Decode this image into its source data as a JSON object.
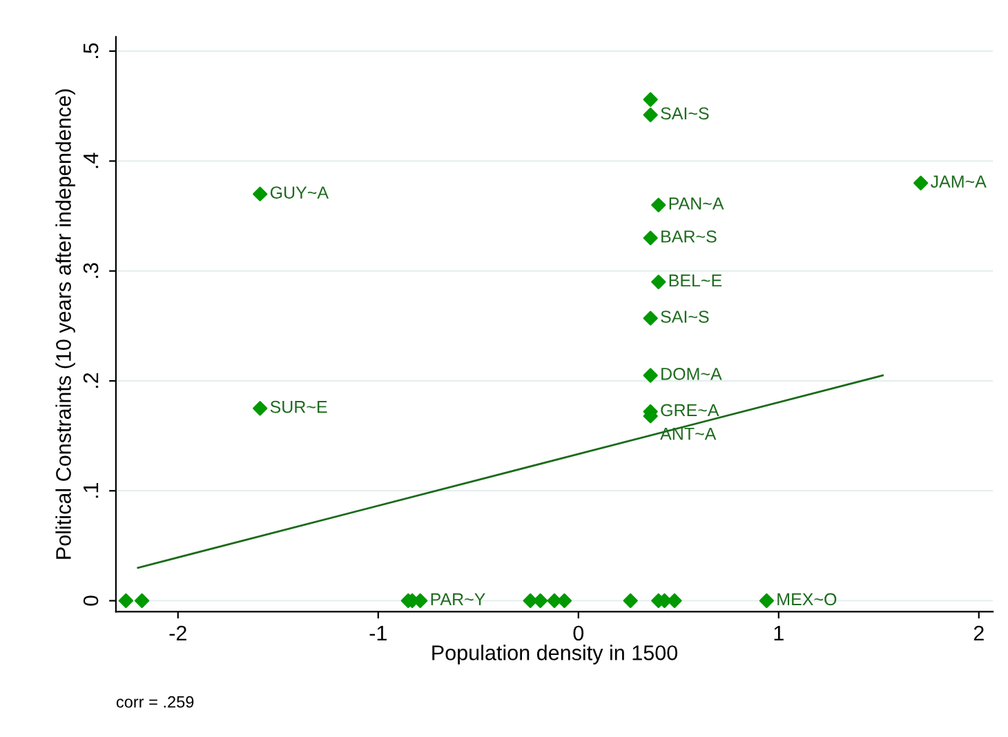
{
  "chart_data": {
    "type": "scatter",
    "xlabel": "Population density in 1500",
    "ylabel": "Political Constraints (10 years after independence)",
    "xlim": [
      -2.31,
      2.07
    ],
    "ylim": [
      -0.01,
      0.513
    ],
    "xticks": [
      -2,
      -1,
      0,
      1,
      2
    ],
    "yticks": [
      0,
      {
        "value": 0.1,
        "label": ".1"
      },
      {
        "value": 0.2,
        "label": ".2"
      },
      {
        "value": 0.3,
        "label": ".3"
      },
      {
        "value": 0.4,
        "label": ".4"
      },
      {
        "value": 0.5,
        "label": ".5"
      }
    ],
    "grid": "y",
    "legend": false,
    "series": [
      {
        "marker": "diamond",
        "color": "#009900",
        "x": [
          0.36,
          0.36,
          -1.59,
          1.71,
          0.4,
          0.36,
          0.4,
          0.36,
          0.36,
          0.36,
          0.36,
          -1.59,
          -2.26,
          -2.18,
          -0.85,
          -0.83,
          -0.79,
          -0.24,
          -0.19,
          -0.12,
          -0.07,
          0.26,
          0.4,
          0.43,
          0.48,
          0.94
        ],
        "values": [
          0.456,
          0.442,
          0.37,
          0.38,
          0.36,
          0.33,
          0.29,
          0.257,
          0.205,
          0.172,
          0.168,
          0.175,
          0,
          0,
          0,
          0,
          0,
          0,
          0,
          0,
          0,
          0,
          0,
          0,
          0,
          0
        ]
      },
      {
        "type": "line",
        "color": "#1a6b1a",
        "x": [
          -2.2,
          1.52
        ],
        "values": [
          0.03,
          0.205
        ]
      }
    ],
    "annotations": [
      {
        "text": "SAI~S",
        "x": 0.36,
        "y": 0.442
      },
      {
        "text": "GUY~A",
        "x": -1.59,
        "y": 0.37
      },
      {
        "text": "JAM~A",
        "x": 1.71,
        "y": 0.38
      },
      {
        "text": "PAN~A",
        "x": 0.4,
        "y": 0.36
      },
      {
        "text": "BAR~S",
        "x": 0.36,
        "y": 0.33
      },
      {
        "text": "BEL~E",
        "x": 0.4,
        "y": 0.29
      },
      {
        "text": "SAI~S",
        "x": 0.36,
        "y": 0.257
      },
      {
        "text": "DOM~A",
        "x": 0.36,
        "y": 0.205
      },
      {
        "text": "GRE~A",
        "x": 0.36,
        "y": 0.172
      },
      {
        "text": "ANT~A",
        "x": 0.36,
        "y": 0.168
      },
      {
        "text": "SUR~E",
        "x": -1.59,
        "y": 0.175
      },
      {
        "text": "PAR~Y",
        "x": -0.79,
        "y": 0
      },
      {
        "text": "MEX~O",
        "x": 0.94,
        "y": 0
      },
      "corr = .259"
    ]
  }
}
